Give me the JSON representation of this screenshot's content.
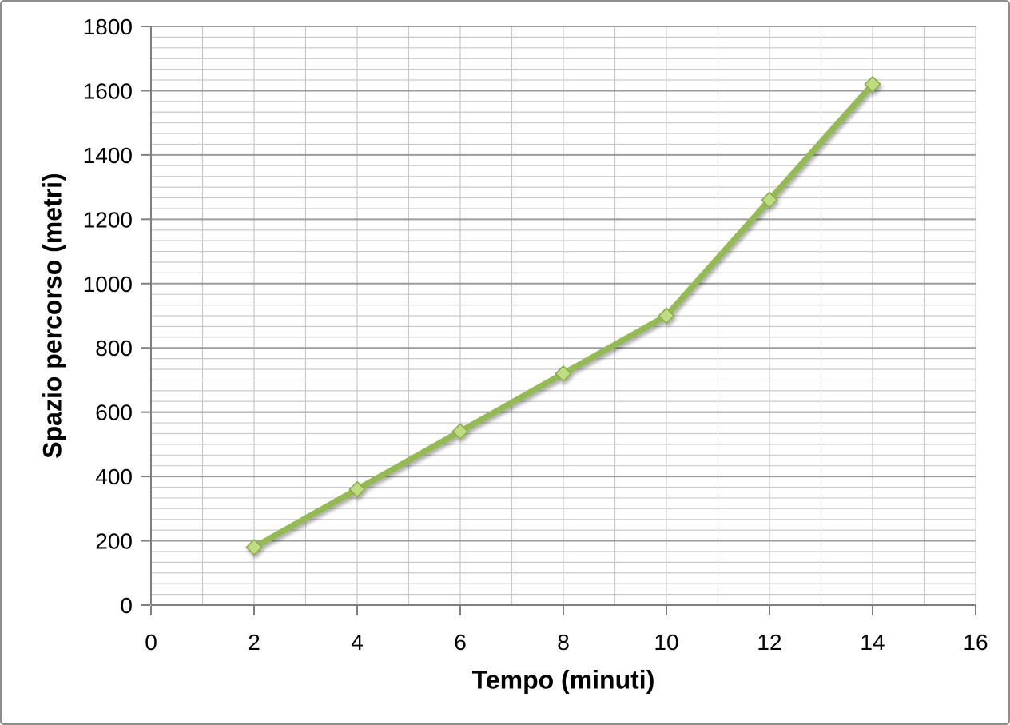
{
  "chart_data": {
    "type": "line",
    "title": "",
    "xlabel": "Tempo (minuti)",
    "ylabel": "Spazio percorso (metri)",
    "x": [
      2,
      4,
      6,
      8,
      10,
      12,
      14
    ],
    "y": [
      180,
      360,
      540,
      720,
      900,
      1260,
      1620
    ],
    "xlim": [
      0,
      16
    ],
    "ylim": [
      0,
      1800
    ],
    "x_ticks": [
      0,
      2,
      4,
      6,
      8,
      10,
      12,
      14,
      16
    ],
    "y_ticks": [
      0,
      200,
      400,
      600,
      800,
      1000,
      1200,
      1400,
      1600,
      1800
    ],
    "x_minor_step": 1,
    "y_major_step": 200,
    "y_minor_divisions_per_major": 6,
    "grid": "major and minor, both axes",
    "legend": "none",
    "marker": "diamond"
  },
  "colors": {
    "line": "#94ba52",
    "marker_fill": "#bedd80",
    "marker_stroke": "#8aad4a",
    "grid_minor": "#c9c9c9",
    "grid_major": "#9b9b9b",
    "axis": "#7f7f7f",
    "tick": "#7f7f7f",
    "text": "#000000",
    "frame_border": "#8e8e8e",
    "background": "#ffffff"
  }
}
